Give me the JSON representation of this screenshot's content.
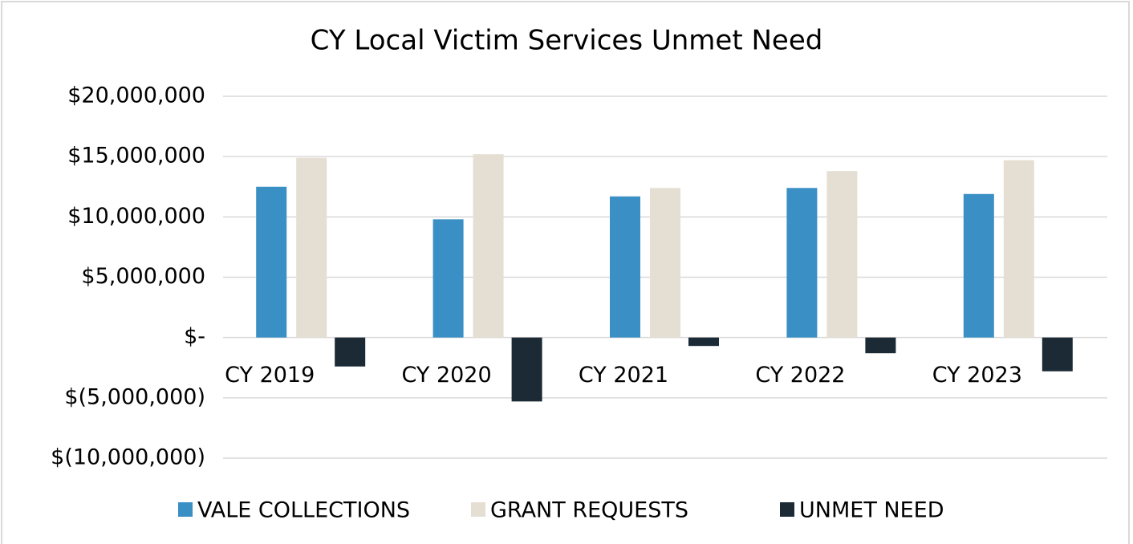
{
  "chart_data": {
    "type": "bar",
    "title": "CY Local Victim Services Unmet Need",
    "categories": [
      "CY 2019",
      "CY 2020",
      "CY 2021",
      "CY 2022",
      "CY 2023"
    ],
    "series": [
      {
        "name": "VALE COLLECTIONS",
        "color": "#3a8fc5",
        "values": [
          12500000,
          9800000,
          11700000,
          12400000,
          11900000
        ]
      },
      {
        "name": "GRANT REQUESTS",
        "color": "#e5ded3",
        "values": [
          14900000,
          15200000,
          12400000,
          13800000,
          14700000
        ]
      },
      {
        "name": "UNMET NEED",
        "color": "#1b2a35",
        "values": [
          -2400000,
          -5300000,
          -700000,
          -1300000,
          -2800000
        ]
      }
    ],
    "ylim": [
      -10000000,
      20000000
    ],
    "yticks": [
      {
        "value": -10000000,
        "label": "$(10,000,000)"
      },
      {
        "value": -5000000,
        "label": "$(5,000,000)"
      },
      {
        "value": 0,
        "label": "$-"
      },
      {
        "value": 5000000,
        "label": "$5,000,000"
      },
      {
        "value": 10000000,
        "label": "$10,000,000"
      },
      {
        "value": 15000000,
        "label": "$15,000,000"
      },
      {
        "value": 20000000,
        "label": "$20,000,000"
      }
    ],
    "grid": true,
    "legend": "bottom"
  }
}
